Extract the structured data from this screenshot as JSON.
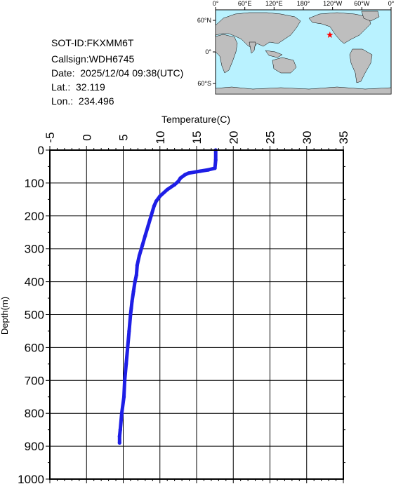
{
  "info": {
    "sot_id": "SOT-ID:FKXMM6T",
    "callsign": "Callsign:WDH6745",
    "date": "Date:  2025/12/04 09:38(UTC)",
    "lat": "Lat.:  32.119",
    "lon": "Lon.:  234.496"
  },
  "map": {
    "lon_labels": [
      "0°",
      "60°E",
      "120°E",
      "180°",
      "120°W",
      "60°W",
      "0°"
    ],
    "lat_labels": [
      "60°N",
      "0°",
      "60°S"
    ],
    "ocean_color": "#b9f2ff",
    "land_color": "#bebebe",
    "marker_color": "#ff0000",
    "marker": {
      "lat": 32.119,
      "lon": 234.496
    }
  },
  "chart_data": {
    "type": "line",
    "title": "",
    "xlabel": "Temperature(C)",
    "ylabel": "Depth(m)",
    "xlim": [
      -5,
      35
    ],
    "ylim": [
      0,
      1000
    ],
    "x_ticks": [
      "-5",
      "0",
      "5",
      "10",
      "15",
      "20",
      "25",
      "30",
      "35"
    ],
    "y_ticks": [
      "0",
      "100",
      "200",
      "300",
      "400",
      "500",
      "600",
      "700",
      "800",
      "900",
      "1000"
    ],
    "grid": true,
    "line_color": "#1e1ee6",
    "series": [
      {
        "x": [
          17.6,
          17.6,
          17.5,
          16.6,
          15.5,
          13.9,
          13.4,
          12.8,
          12.5,
          12.0,
          11.0,
          10.0,
          9.5,
          9.2,
          8.8,
          8.4,
          8.0,
          7.6,
          7.2,
          6.9,
          6.8,
          6.6,
          6.4,
          6.2,
          6.1,
          6.0,
          5.8,
          5.6,
          5.4,
          5.2,
          5.1,
          4.8,
          4.6,
          4.5,
          4.5
        ],
        "y": [
          0,
          30,
          55,
          60,
          64,
          70,
          75,
          85,
          95,
          105,
          120,
          140,
          155,
          170,
          200,
          230,
          260,
          290,
          320,
          350,
          380,
          400,
          430,
          460,
          480,
          500,
          550,
          600,
          650,
          700,
          750,
          800,
          850,
          870,
          890
        ]
      }
    ]
  }
}
